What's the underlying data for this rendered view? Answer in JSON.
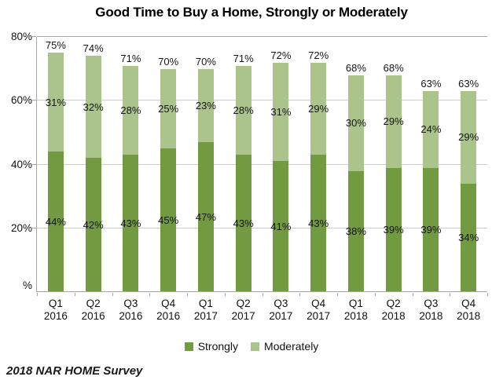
{
  "footer": {
    "source": "2018 NAR HOME Survey"
  },
  "chart_data": {
    "type": "bar",
    "stacked": true,
    "title": "Good Time to Buy a Home, Strongly or Moderately",
    "categories": [
      "Q1 2016",
      "Q2 2016",
      "Q3 2016",
      "Q4 2016",
      "Q1 2017",
      "Q2 2017",
      "Q3 2017",
      "Q4 2017",
      "Q1 2018",
      "Q2 2018",
      "Q3 2018",
      "Q4 2018"
    ],
    "category_line1": [
      "Q1",
      "Q2",
      "Q3",
      "Q4",
      "Q1",
      "Q2",
      "Q3",
      "Q4",
      "Q1",
      "Q2",
      "Q3",
      "Q4"
    ],
    "category_line2": [
      "2016",
      "2016",
      "2016",
      "2016",
      "2017",
      "2017",
      "2017",
      "2017",
      "2018",
      "2018",
      "2018",
      "2018"
    ],
    "series": [
      {
        "name": "Strongly",
        "color": "#729b41",
        "values": [
          44,
          42,
          43,
          45,
          47,
          43,
          41,
          43,
          38,
          39,
          39,
          34
        ]
      },
      {
        "name": "Moderately",
        "color": "#abc48c",
        "values": [
          31,
          32,
          28,
          25,
          23,
          28,
          31,
          29,
          30,
          29,
          24,
          29
        ]
      }
    ],
    "totals": [
      75,
      74,
      71,
      70,
      70,
      71,
      72,
      72,
      68,
      68,
      63,
      63
    ],
    "value_suffix": "%",
    "ylim": [
      0,
      80
    ],
    "yticks": [
      {
        "value": 80,
        "label": "80%"
      },
      {
        "value": 60,
        "label": "60%"
      },
      {
        "value": 40,
        "label": "40%"
      },
      {
        "value": 20,
        "label": "20%"
      },
      {
        "value": 0,
        "label": "%"
      }
    ],
    "grid": true,
    "legend_position": "bottom",
    "colors": {
      "axis": "#a6a6a6",
      "gridline": "#cccccc",
      "top_gridline": "#a6a6a6",
      "text": "#111111"
    }
  }
}
